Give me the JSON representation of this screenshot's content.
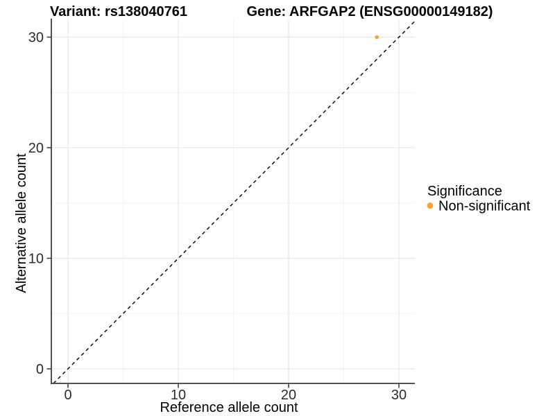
{
  "titles": {
    "variant": "Variant: rs138040761",
    "gene": "Gene: ARFGAP2 (ENSG00000149182)"
  },
  "chart_data": {
    "type": "scatter",
    "title": "Variant: rs138040761   Gene: ARFGAP2 (ENSG00000149182)",
    "xlabel": "Reference allele count",
    "ylabel": "Alternative allele count",
    "xlim": [
      -1.5,
      31.5
    ],
    "ylim": [
      -1.5,
      31.5
    ],
    "x_ticks": [
      "0",
      "10",
      "20",
      "30"
    ],
    "y_ticks": [
      "0",
      "10",
      "20",
      "30"
    ],
    "grid": true,
    "points": [
      {
        "x": 28,
        "y": 30,
        "series": "Non-significant",
        "color": "#FFA433"
      }
    ],
    "reference_line": {
      "slope": 1,
      "intercept": 0,
      "linetype": "dashed",
      "color": "#000000"
    },
    "legend": {
      "title": "Significance",
      "position": "right",
      "entries": [
        {
          "label": "Non-significant",
          "color": "#FFA433"
        }
      ]
    }
  }
}
